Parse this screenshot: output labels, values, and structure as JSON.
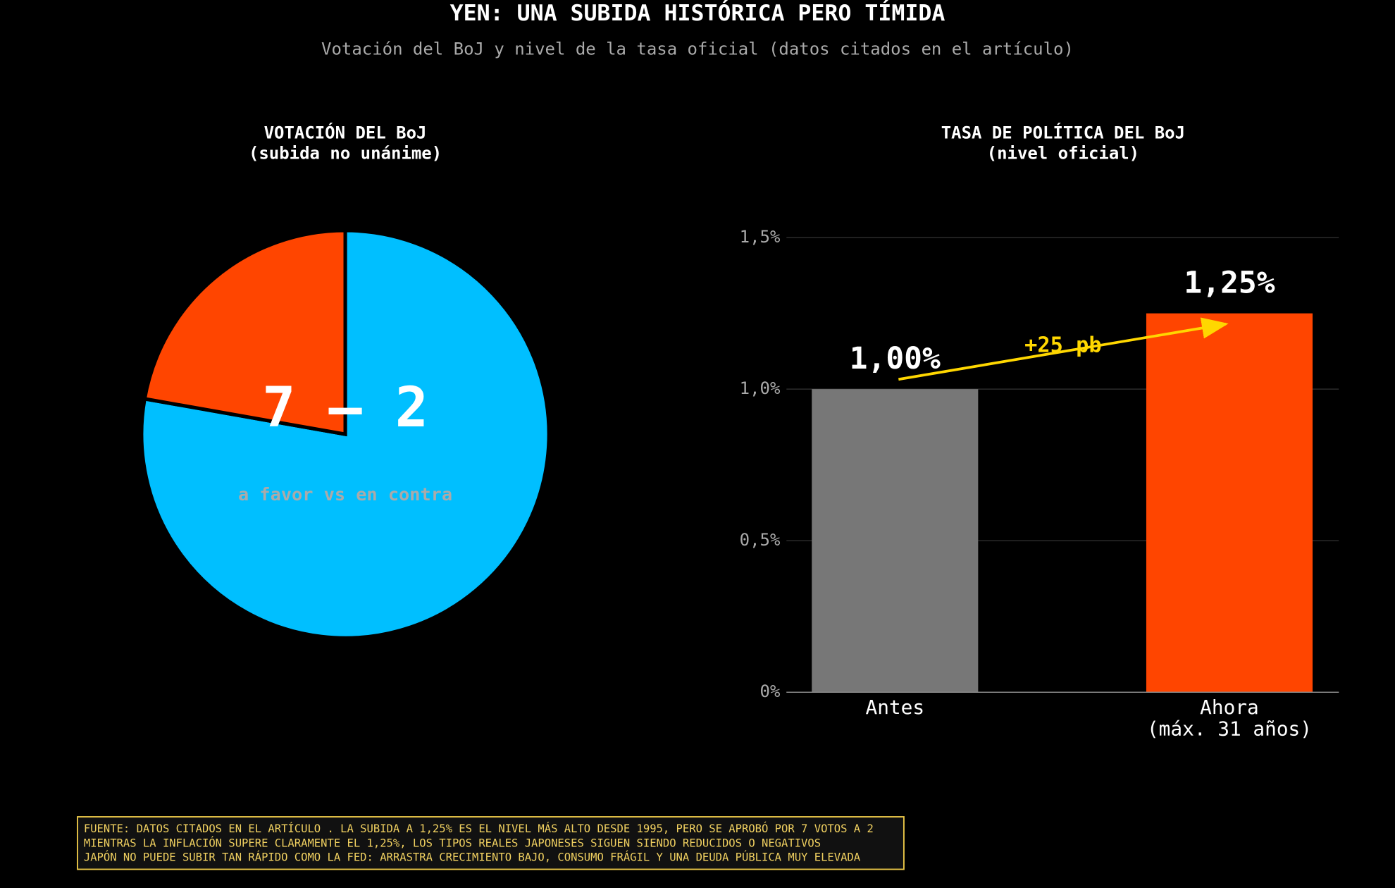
{
  "title": "YEN: UNA SUBIDA HISTÓRICA PERO TÍMIDA",
  "subtitle": "Votación del BoJ y nivel de la tasa oficial (datos citados en el artículo)",
  "chart_data": [
    {
      "type": "pie",
      "title": "VOTACIÓN DEL BoJ\n(subida no unánime)",
      "values": [
        7,
        2
      ],
      "colors": [
        "#00bfff",
        "#ff4500"
      ],
      "annotations": [
        "7 – 2",
        "a favor vs en contra"
      ]
    },
    {
      "type": "bar",
      "title": "TASA DE POLÍTICA DEL BoJ\n(nivel oficial)",
      "categories": [
        "Antes",
        "Ahora\n(máx. 31 años)"
      ],
      "values": [
        1.0,
        1.25
      ],
      "value_labels": [
        "1,00%",
        "1,25%"
      ],
      "colors": [
        "#777777",
        "#ff4500"
      ],
      "ylim": [
        0,
        1.5
      ],
      "yticks": [
        {
          "value": 0,
          "label": "0%"
        },
        {
          "value": 0.5,
          "label": "0,5%"
        },
        {
          "value": 1.0,
          "label": "1,0%"
        },
        {
          "value": 1.5,
          "label": "1,5%"
        }
      ],
      "grid": true,
      "annotations": [
        "+25 pb"
      ]
    }
  ],
  "footer": [
    "FUENTE: DATOS CITADOS EN EL ARTÍCULO . LA SUBIDA A 1,25% ES EL NIVEL MÁS ALTO DESDE 1995, PERO SE APROBÓ POR 7 VOTOS A 2",
    "MIENTRAS LA INFLACIÓN SUPERE CLARAMENTE EL 1,25%, LOS TIPOS REALES JAPONESES SIGUEN SIENDO REDUCIDOS O NEGATIVOS",
    "JAPÓN NO PUEDE SUBIR TAN RÁPIDO COMO LA FED: ARRASTRA CRECIMIENTO BAJO, CONSUMO FRÁGIL Y UNA DEUDA PÚBLICA MUY ELEVADA"
  ]
}
